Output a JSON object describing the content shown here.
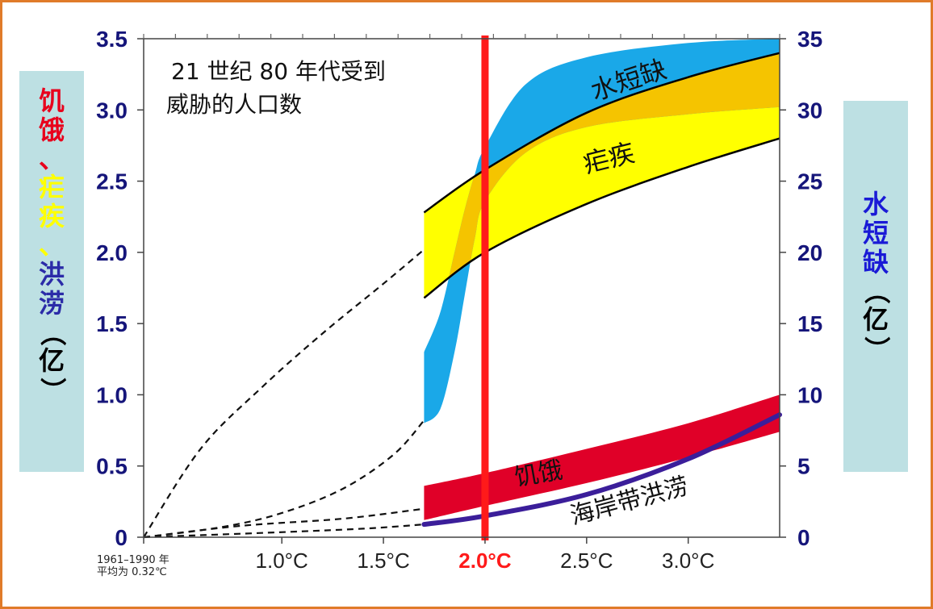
{
  "left_axis_label": {
    "parts": [
      {
        "text": "饥饿、",
        "color": "#e8001c"
      },
      {
        "text": "疟疾、",
        "color": "#ffff00"
      },
      {
        "text": "洪涝",
        "color": "#2b2ba8"
      },
      {
        "text": "（亿）",
        "color": "#000000"
      }
    ]
  },
  "right_axis_label": {
    "parts": [
      {
        "text": "水短缺",
        "color": "#1a1ad6"
      },
      {
        "text": "（亿）",
        "color": "#000000"
      }
    ]
  },
  "chart_data": {
    "type": "area",
    "title": "21 世纪 80 年代受到\n威胁的人口数",
    "x_tick_labels": [
      "1.0°C",
      "1.5°C",
      "2.0°C",
      "2.5°C",
      "3.0°C"
    ],
    "x_tick_values": [
      1.0,
      1.5,
      2.0,
      2.5,
      3.0
    ],
    "x_origin_label": "1961–1990 年\n平均为 0.32℃",
    "x_origin_value": 0.32,
    "xlim": [
      0.32,
      3.45
    ],
    "highlight_x": 2.0,
    "highlight_label": "2.0°C",
    "highlight_color": "#ff1a1a",
    "left_axis": {
      "ylim": [
        0,
        3.5
      ],
      "ticks": [
        "0",
        "0.5",
        "1.0",
        "1.5",
        "2.0",
        "2.5",
        "3.0",
        "3.5"
      ],
      "tick_values": [
        0,
        0.5,
        1.0,
        1.5,
        2.0,
        2.5,
        3.0,
        3.5
      ]
    },
    "right_axis": {
      "ylim": [
        0,
        35
      ],
      "ticks": [
        "0",
        "5",
        "10",
        "15",
        "20",
        "25",
        "30",
        "35"
      ],
      "tick_values": [
        0,
        5,
        10,
        15,
        20,
        25,
        30,
        35
      ]
    },
    "band_start_x": 1.7,
    "bands": [
      {
        "name": "疟疾",
        "color": "#ffff00",
        "overlap_color": "#f5c400",
        "outline": true,
        "axis": "left",
        "x": [
          1.7,
          2.0,
          2.5,
          3.0,
          3.45
        ],
        "low": [
          1.68,
          2.0,
          2.34,
          2.6,
          2.8
        ],
        "high": [
          2.28,
          2.58,
          2.98,
          3.23,
          3.4
        ]
      },
      {
        "name": "水短缺",
        "color": "#1aa8e8",
        "axis": "left",
        "x": [
          1.7,
          1.78,
          1.85,
          1.9,
          1.95,
          2.0,
          2.2,
          2.5,
          3.0,
          3.45
        ],
        "low": [
          0.8,
          0.9,
          1.3,
          1.7,
          2.1,
          2.36,
          2.7,
          2.88,
          2.97,
          3.02
        ],
        "high": [
          1.3,
          1.58,
          2.0,
          2.3,
          2.55,
          2.74,
          3.18,
          3.37,
          3.47,
          3.5
        ]
      },
      {
        "name": "饥饿",
        "color": "#e00028",
        "axis": "left",
        "x": [
          1.7,
          2.0,
          2.5,
          3.0,
          3.45
        ],
        "low": [
          0.12,
          0.22,
          0.38,
          0.56,
          0.74
        ],
        "high": [
          0.36,
          0.45,
          0.62,
          0.8,
          1.0
        ]
      }
    ],
    "lines": [
      {
        "name": "海岸带洪涝",
        "color": "#3b1e9a",
        "width": 6,
        "axis": "left",
        "x": [
          1.7,
          2.0,
          2.5,
          3.0,
          3.45
        ],
        "y": [
          0.09,
          0.15,
          0.3,
          0.55,
          0.86
        ]
      }
    ],
    "dashed_guides": [
      {
        "x": [
          0.32,
          0.6,
          0.9,
          1.2,
          1.5,
          1.7
        ],
        "y": [
          0,
          0.62,
          1.05,
          1.43,
          1.78,
          2.02
        ]
      },
      {
        "x": [
          0.32,
          0.7,
          1.0,
          1.3,
          1.55,
          1.7
        ],
        "y": [
          0,
          0.07,
          0.17,
          0.34,
          0.58,
          0.82
        ]
      },
      {
        "x": [
          0.32,
          0.8,
          1.3,
          1.7
        ],
        "y": [
          0,
          0.08,
          0.13,
          0.2
        ]
      },
      {
        "x": [
          0.32,
          0.9,
          1.4,
          1.7
        ],
        "y": [
          0,
          0.03,
          0.06,
          0.09
        ]
      }
    ],
    "annotations": [
      {
        "text": "水短缺",
        "x": 2.72,
        "y": 3.15,
        "rotate": -18,
        "size": 32
      },
      {
        "text": "疟疾",
        "x": 2.62,
        "y": 2.6,
        "rotate": -14,
        "size": 32
      },
      {
        "text": "饥饿",
        "x": 2.27,
        "y": 0.39,
        "rotate": -10,
        "size": 30
      },
      {
        "text": "海岸带洪涝",
        "x": 2.72,
        "y": 0.2,
        "rotate": -15,
        "size": 30
      }
    ]
  }
}
